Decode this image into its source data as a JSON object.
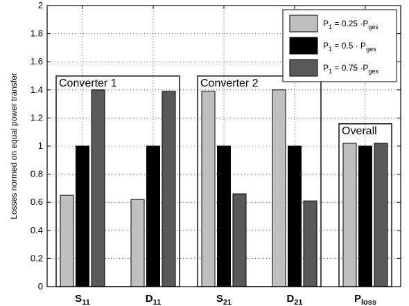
{
  "chart_data": {
    "type": "bar",
    "categories": [
      "S11",
      "D11",
      "S21",
      "D21",
      "Ploss"
    ],
    "category_labels": [
      {
        "main": "S",
        "sub": "11"
      },
      {
        "main": "D",
        "sub": "11"
      },
      {
        "main": "S",
        "sub": "21"
      },
      {
        "main": "D",
        "sub": "21"
      },
      {
        "main": "P",
        "sub": "loss"
      }
    ],
    "series": [
      {
        "name": "P1 = 0.25 ·Pges",
        "color": "#c0c0c0",
        "values": [
          0.65,
          0.62,
          1.39,
          1.4,
          1.02
        ]
      },
      {
        "name": "P1 = 0.5 · Pges",
        "color": "#000000",
        "values": [
          1.0,
          1.0,
          1.0,
          1.0,
          1.0
        ]
      },
      {
        "name": "P1 = 0.75 ·Pges",
        "color": "#595959",
        "values": [
          1.4,
          1.39,
          0.66,
          0.61,
          1.02
        ]
      }
    ],
    "legend": {
      "placement": "top-right",
      "entries": [
        {
          "main": "P",
          "sub1": "1",
          "mid": " = 0.25 ·P",
          "sub2": "ges"
        },
        {
          "main": "P",
          "sub1": "1",
          "mid": " = 0.5  · P",
          "sub2": "ges"
        },
        {
          "main": "P",
          "sub1": "1",
          "mid": " = 0.75 ·P",
          "sub2": "ges"
        }
      ]
    },
    "groups": [
      {
        "label": "Converter 1",
        "categories": [
          "S11",
          "D11"
        ]
      },
      {
        "label": "Converter 2",
        "categories": [
          "S21",
          "D21"
        ]
      },
      {
        "label": "Overall",
        "categories": [
          "Ploss"
        ]
      }
    ],
    "title": "",
    "xlabel": "",
    "ylabel": "Losses normed on equal power transfer",
    "ylim": [
      0,
      2
    ],
    "yticks": [
      "0",
      "0.2",
      "0.4",
      "0.6",
      "0.8",
      "1",
      "1.2",
      "1.4",
      "1.6",
      "1.8",
      "2"
    ],
    "grid": "dotted"
  }
}
